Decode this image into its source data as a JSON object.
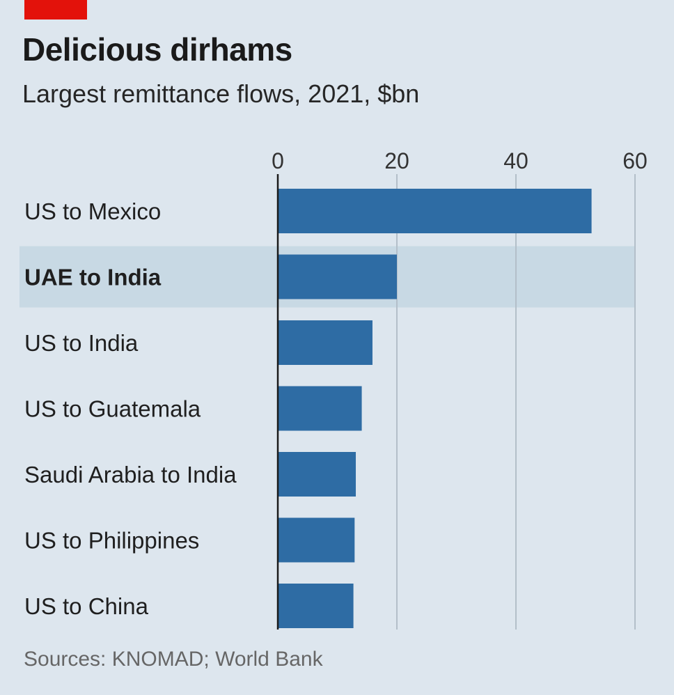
{
  "title": "Delicious dirhams",
  "subtitle": "Largest remittance flows, 2021, $bn",
  "source": "Sources: KNOMAD; World Bank",
  "colors": {
    "background": "#dde6ee",
    "bar": "#2e6ca4",
    "highlight_band": "#c8d9e4",
    "brand_red": "#e3120b",
    "grid": "#b3bfc9"
  },
  "chart_data": {
    "type": "bar",
    "orientation": "horizontal",
    "categories": [
      "US to Mexico",
      "UAE to India",
      "US to India",
      "US to Guatemala",
      "Saudi Arabia to India",
      "US to Philippines",
      "US to China"
    ],
    "values": [
      52.7,
      20.0,
      15.9,
      14.1,
      13.1,
      12.9,
      12.7
    ],
    "highlighted_category": "UAE to India",
    "xlim": [
      0,
      60
    ],
    "xticks": [
      0,
      20,
      40,
      60
    ],
    "grid": true
  }
}
